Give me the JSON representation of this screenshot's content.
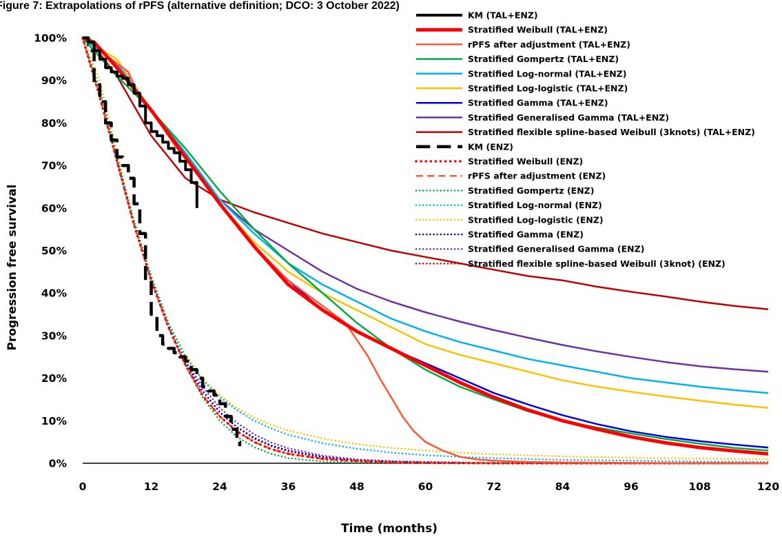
{
  "chart_data": {
    "type": "line",
    "title": "Figure 7: Extrapolations of rPFS (alternative definition; DCO: 3 October 2022)",
    "xlabel": "Time (months)",
    "ylabel": "Progression free survival",
    "xlim": [
      0,
      120
    ],
    "ylim": [
      0,
      1
    ],
    "x_ticks": [
      0,
      12,
      24,
      36,
      48,
      60,
      72,
      84,
      96,
      108,
      120
    ],
    "x_tick_labels": [
      "0",
      "12",
      "24",
      "36",
      "48",
      "60",
      "72",
      "84",
      "96",
      "108",
      "120"
    ],
    "y_ticks": [
      0,
      0.1,
      0.2,
      0.3,
      0.4,
      0.5,
      0.6,
      0.7,
      0.8,
      0.9,
      1.0
    ],
    "y_tick_labels": [
      "0%",
      "10%",
      "20%",
      "30%",
      "40%",
      "50%",
      "60%",
      "70%",
      "80%",
      "90%",
      "100%"
    ],
    "grid": false,
    "legend_position": "top-right",
    "series": [
      {
        "name": "KM (TAL+ENZ)",
        "color": "#000000",
        "dash": "solid",
        "width": 4,
        "step": true,
        "x": [
          0,
          1,
          2,
          3,
          4,
          5,
          6,
          7,
          8,
          9,
          10,
          11,
          12,
          13,
          14,
          15,
          16,
          17,
          18,
          19,
          20
        ],
        "y": [
          1.0,
          0.99,
          0.97,
          0.95,
          0.93,
          0.92,
          0.91,
          0.905,
          0.89,
          0.87,
          0.84,
          0.8,
          0.78,
          0.77,
          0.755,
          0.74,
          0.73,
          0.71,
          0.69,
          0.66,
          0.6
        ]
      },
      {
        "name": "Stratified Weibull (TAL+ENZ)",
        "color": "#ff0000",
        "dash": "solid",
        "width": 5,
        "x": [
          0,
          2,
          6,
          12,
          18,
          24,
          30,
          36,
          42,
          48,
          54,
          60,
          66,
          72,
          78,
          84,
          90,
          96,
          102,
          108,
          114,
          120
        ],
        "y": [
          1.0,
          0.99,
          0.93,
          0.83,
          0.72,
          0.61,
          0.51,
          0.42,
          0.36,
          0.31,
          0.27,
          0.23,
          0.19,
          0.155,
          0.125,
          0.1,
          0.08,
          0.062,
          0.048,
          0.037,
          0.029,
          0.022
        ]
      },
      {
        "name": "rPFS after adjustment (TAL+ENZ)",
        "color": "#ff5533",
        "dash": "solid",
        "width": 2.5,
        "x": [
          0,
          2,
          4,
          6,
          8,
          10,
          12,
          16,
          20,
          24,
          30,
          36,
          42,
          46,
          48,
          50,
          52,
          54,
          56,
          58,
          60,
          63,
          66,
          69,
          72,
          78,
          84,
          96,
          108,
          120
        ],
        "y": [
          1.0,
          0.99,
          0.96,
          0.94,
          0.92,
          0.86,
          0.83,
          0.75,
          0.68,
          0.61,
          0.51,
          0.43,
          0.37,
          0.33,
          0.29,
          0.25,
          0.2,
          0.155,
          0.11,
          0.075,
          0.05,
          0.03,
          0.015,
          0.009,
          0.006,
          0.003,
          0.002,
          0.001,
          0.0,
          0.0
        ]
      },
      {
        "name": "Stratified Gompertz (TAL+ENZ)",
        "color": "#00aa44",
        "dash": "solid",
        "width": 2.5,
        "x": [
          0,
          6,
          12,
          18,
          24,
          30,
          36,
          42,
          48,
          54,
          60,
          66,
          72,
          78,
          84,
          90,
          96,
          102,
          108,
          114,
          120
        ],
        "y": [
          1.0,
          0.91,
          0.83,
          0.74,
          0.64,
          0.55,
          0.47,
          0.4,
          0.33,
          0.27,
          0.22,
          0.18,
          0.15,
          0.122,
          0.1,
          0.084,
          0.07,
          0.057,
          0.046,
          0.036,
          0.03
        ]
      },
      {
        "name": "Stratified Log-normal (TAL+ENZ)",
        "color": "#00b0f0",
        "dash": "solid",
        "width": 2.5,
        "x": [
          0,
          6,
          12,
          18,
          24,
          30,
          36,
          42,
          48,
          54,
          60,
          66,
          72,
          78,
          84,
          90,
          96,
          102,
          108,
          114,
          120
        ],
        "y": [
          1.0,
          0.94,
          0.83,
          0.73,
          0.62,
          0.54,
          0.47,
          0.42,
          0.38,
          0.34,
          0.31,
          0.285,
          0.265,
          0.245,
          0.23,
          0.215,
          0.2,
          0.19,
          0.18,
          0.172,
          0.165
        ]
      },
      {
        "name": "Stratified Log-logistic (TAL+ENZ)",
        "color": "#ffc000",
        "dash": "solid",
        "width": 2.5,
        "x": [
          0,
          6,
          12,
          18,
          24,
          30,
          36,
          42,
          48,
          54,
          60,
          66,
          72,
          78,
          84,
          90,
          96,
          102,
          108,
          114,
          120
        ],
        "y": [
          1.0,
          0.95,
          0.83,
          0.72,
          0.61,
          0.52,
          0.45,
          0.4,
          0.36,
          0.32,
          0.28,
          0.255,
          0.235,
          0.215,
          0.195,
          0.18,
          0.168,
          0.157,
          0.147,
          0.138,
          0.13
        ]
      },
      {
        "name": "Stratified Gamma (TAL+ENZ)",
        "color": "#0000dd",
        "dash": "solid",
        "width": 2.5,
        "x": [
          0,
          2,
          6,
          12,
          18,
          24,
          30,
          36,
          42,
          48,
          54,
          60,
          66,
          72,
          78,
          84,
          90,
          96,
          102,
          108,
          114,
          120
        ],
        "y": [
          1.0,
          0.99,
          0.93,
          0.83,
          0.72,
          0.61,
          0.51,
          0.43,
          0.36,
          0.31,
          0.27,
          0.235,
          0.2,
          0.165,
          0.138,
          0.113,
          0.092,
          0.075,
          0.062,
          0.052,
          0.044,
          0.037
        ]
      },
      {
        "name": "Stratified Generalised Gamma (TAL+ENZ)",
        "color": "#7030a0",
        "dash": "solid",
        "width": 2.5,
        "x": [
          0,
          2,
          6,
          12,
          18,
          24,
          30,
          36,
          42,
          48,
          54,
          60,
          66,
          72,
          78,
          84,
          90,
          96,
          102,
          108,
          114,
          120
        ],
        "y": [
          1.0,
          0.99,
          0.93,
          0.83,
          0.72,
          0.62,
          0.55,
          0.5,
          0.45,
          0.41,
          0.38,
          0.355,
          0.333,
          0.313,
          0.295,
          0.278,
          0.263,
          0.25,
          0.238,
          0.228,
          0.221,
          0.215
        ]
      },
      {
        "name": "Stratified flexible spline-based Weibull (3knots) (TAL+ENZ)",
        "color": "#c00000",
        "dash": "solid",
        "width": 2.5,
        "x": [
          0,
          2,
          6,
          12,
          18,
          24,
          30,
          36,
          42,
          48,
          54,
          60,
          66,
          72,
          78,
          84,
          90,
          96,
          102,
          108,
          114,
          120
        ],
        "y": [
          1.0,
          0.98,
          0.91,
          0.77,
          0.67,
          0.62,
          0.59,
          0.565,
          0.54,
          0.52,
          0.5,
          0.485,
          0.47,
          0.455,
          0.44,
          0.43,
          0.415,
          0.403,
          0.392,
          0.38,
          0.37,
          0.362
        ]
      },
      {
        "name": "KM (ENZ)",
        "color": "#000000",
        "dash": "longdash",
        "width": 4.5,
        "step": true,
        "x": [
          0,
          1,
          2,
          3,
          4,
          5,
          6,
          7,
          8,
          9,
          10,
          11,
          12,
          13,
          14,
          15,
          16,
          17,
          18,
          19,
          20,
          21,
          22,
          23,
          24,
          25,
          26,
          27,
          27.5
        ],
        "y": [
          1.0,
          0.97,
          0.89,
          0.85,
          0.8,
          0.76,
          0.72,
          0.7,
          0.67,
          0.61,
          0.54,
          0.43,
          0.35,
          0.3,
          0.28,
          0.27,
          0.26,
          0.25,
          0.24,
          0.22,
          0.2,
          0.18,
          0.17,
          0.16,
          0.14,
          0.11,
          0.08,
          0.05,
          0.04
        ]
      },
      {
        "name": "Stratified Weibull (ENZ)",
        "color": "#ff0000",
        "dash": "dot",
        "width": 3.5,
        "x": [
          0,
          3,
          6,
          9,
          12,
          15,
          18,
          21,
          24,
          27,
          30,
          33,
          36,
          42,
          48,
          54,
          60,
          72,
          84,
          96,
          108,
          120
        ],
        "y": [
          1.0,
          0.86,
          0.71,
          0.56,
          0.43,
          0.32,
          0.23,
          0.16,
          0.11,
          0.075,
          0.05,
          0.033,
          0.022,
          0.01,
          0.005,
          0.002,
          0.001,
          0.0,
          0.0,
          0.0,
          0.0,
          0.0
        ]
      },
      {
        "name": "rPFS after adjustment (ENZ)",
        "color": "#ff5533",
        "dash": "dash",
        "width": 2.5,
        "x": [
          0,
          3,
          6,
          9,
          12,
          15,
          18,
          21,
          24,
          27,
          30,
          33,
          36,
          42,
          48,
          54,
          60,
          72,
          84,
          96,
          108,
          120
        ],
        "y": [
          1.0,
          0.86,
          0.71,
          0.56,
          0.43,
          0.32,
          0.23,
          0.16,
          0.11,
          0.075,
          0.05,
          0.033,
          0.022,
          0.01,
          0.005,
          0.002,
          0.001,
          0.0,
          0.0,
          0.0,
          0.0,
          0.0
        ]
      },
      {
        "name": "Stratified Gompertz (ENZ)",
        "color": "#00aa44",
        "dash": "dot",
        "width": 2.5,
        "x": [
          0,
          3,
          6,
          9,
          12,
          15,
          18,
          21,
          24,
          27,
          30,
          33,
          36,
          42,
          48,
          54,
          60,
          72,
          84,
          96,
          108,
          120
        ],
        "y": [
          1.0,
          0.87,
          0.72,
          0.57,
          0.44,
          0.33,
          0.23,
          0.155,
          0.1,
          0.062,
          0.038,
          0.022,
          0.012,
          0.004,
          0.001,
          0.0,
          0.0,
          0.0,
          0.0,
          0.0,
          0.0,
          0.0
        ]
      },
      {
        "name": "Stratified Log-normal (ENZ)",
        "color": "#00b0f0",
        "dash": "dot",
        "width": 2.5,
        "x": [
          0,
          3,
          6,
          9,
          12,
          15,
          18,
          21,
          24,
          27,
          30,
          33,
          36,
          42,
          48,
          54,
          60,
          66,
          72,
          84,
          96,
          108,
          120
        ],
        "y": [
          1.0,
          0.88,
          0.72,
          0.56,
          0.43,
          0.33,
          0.25,
          0.195,
          0.155,
          0.125,
          0.1,
          0.082,
          0.067,
          0.047,
          0.034,
          0.025,
          0.019,
          0.015,
          0.012,
          0.008,
          0.006,
          0.004,
          0.003
        ]
      },
      {
        "name": "Stratified Log-logistic (ENZ)",
        "color": "#ffc000",
        "dash": "dot",
        "width": 2.5,
        "x": [
          0,
          3,
          6,
          9,
          12,
          15,
          18,
          21,
          24,
          27,
          30,
          33,
          36,
          42,
          48,
          54,
          60,
          66,
          72,
          84,
          96,
          108,
          120
        ],
        "y": [
          1.0,
          0.9,
          0.73,
          0.56,
          0.43,
          0.33,
          0.255,
          0.2,
          0.16,
          0.13,
          0.108,
          0.09,
          0.077,
          0.058,
          0.045,
          0.036,
          0.03,
          0.025,
          0.021,
          0.016,
          0.013,
          0.011,
          0.009
        ]
      },
      {
        "name": "Stratified Gamma (ENZ)",
        "color": "#0000dd",
        "dash": "dot",
        "width": 2.5,
        "x": [
          0,
          3,
          6,
          9,
          12,
          15,
          18,
          21,
          24,
          27,
          30,
          33,
          36,
          42,
          48,
          54,
          60,
          72,
          84,
          96,
          108,
          120
        ],
        "y": [
          1.0,
          0.87,
          0.71,
          0.56,
          0.43,
          0.32,
          0.235,
          0.17,
          0.12,
          0.085,
          0.06,
          0.042,
          0.03,
          0.015,
          0.007,
          0.004,
          0.002,
          0.0,
          0.0,
          0.0,
          0.0,
          0.0
        ]
      },
      {
        "name": "Stratified Generalised Gamma (ENZ)",
        "color": "#7030a0",
        "dash": "dot",
        "width": 2.5,
        "x": [
          0,
          3,
          6,
          9,
          12,
          15,
          18,
          21,
          24,
          27,
          30,
          33,
          36,
          42,
          48,
          54,
          60,
          72,
          84,
          96,
          108,
          120
        ],
        "y": [
          1.0,
          0.87,
          0.71,
          0.56,
          0.43,
          0.32,
          0.24,
          0.18,
          0.13,
          0.095,
          0.068,
          0.049,
          0.035,
          0.018,
          0.009,
          0.005,
          0.003,
          0.001,
          0.0,
          0.0,
          0.0,
          0.0
        ]
      },
      {
        "name": "Stratified flexible spline-based Weibull (3knot) (ENZ)",
        "color": "#c00000",
        "dash": "dot",
        "width": 2.5,
        "x": [
          0,
          3,
          6,
          9,
          12,
          15,
          18,
          21,
          24,
          27,
          30,
          33,
          36,
          42,
          48,
          54,
          60,
          72,
          84,
          96,
          108,
          120
        ],
        "y": [
          1.0,
          0.87,
          0.71,
          0.56,
          0.43,
          0.32,
          0.235,
          0.17,
          0.12,
          0.085,
          0.058,
          0.04,
          0.028,
          0.013,
          0.006,
          0.003,
          0.002,
          0.0,
          0.0,
          0.0,
          0.0,
          0.0
        ]
      }
    ]
  }
}
